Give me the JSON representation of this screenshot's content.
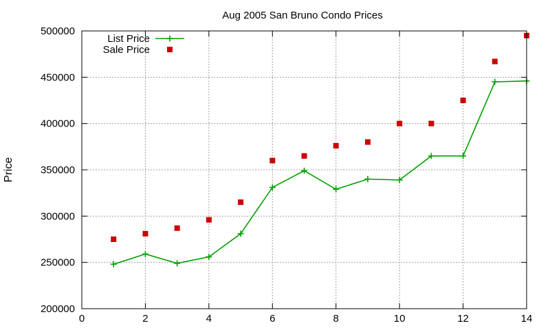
{
  "chart_data": {
    "type": "line",
    "title": "Aug 2005 San Bruno Condo Prices",
    "xlabel": "",
    "ylabel": "Price",
    "xlim": [
      0,
      14
    ],
    "ylim": [
      200000,
      500000
    ],
    "xticks": [
      0,
      2,
      4,
      6,
      8,
      10,
      12,
      14
    ],
    "yticks": [
      200000,
      250000,
      300000,
      350000,
      400000,
      450000,
      500000
    ],
    "grid": true,
    "legend_position": "top-left",
    "series": [
      {
        "name": "List Price",
        "style": "lines+points",
        "marker": "plus",
        "color": "#00a000",
        "x": [
          1,
          2,
          3,
          4,
          5,
          6,
          7,
          8,
          9,
          10,
          11,
          12,
          13,
          14
        ],
        "y": [
          248000,
          259000,
          249000,
          256000,
          281000,
          331000,
          349000,
          329000,
          340000,
          339000,
          365000,
          365000,
          445000,
          446000
        ]
      },
      {
        "name": "Sale Price",
        "style": "points",
        "marker": "square",
        "color": "#cc0000",
        "x": [
          1,
          2,
          3,
          4,
          5,
          6,
          7,
          8,
          9,
          10,
          11,
          12,
          13,
          14
        ],
        "y": [
          275000,
          281000,
          287000,
          296000,
          315000,
          360000,
          365000,
          376000,
          380000,
          400000,
          400000,
          425000,
          467000,
          495000
        ]
      }
    ]
  }
}
